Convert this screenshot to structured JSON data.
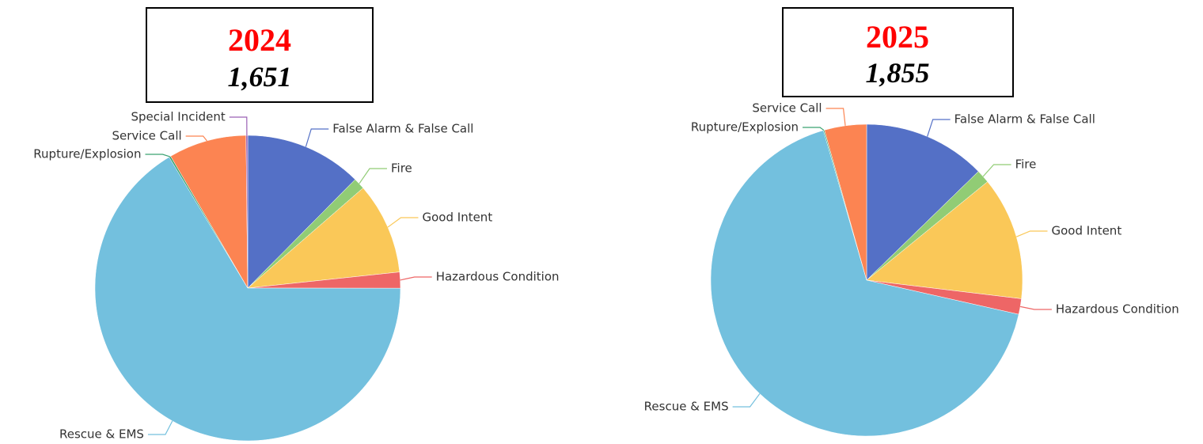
{
  "chart_data": [
    {
      "type": "pie",
      "title": "2024",
      "subtitle": "1,651",
      "categories": [
        "False Alarm & False Call",
        "Fire",
        "Good Intent",
        "Hazardous Condition",
        "Rescue & EMS",
        "Rupture/Explosion",
        "Service Call",
        "Special Incident"
      ],
      "values": [
        205,
        20,
        160,
        28,
        1096,
        3,
        136,
        3
      ],
      "colors": [
        "#5470c6",
        "#91cc75",
        "#fac858",
        "#ee6666",
        "#73c0de",
        "#3ba272",
        "#fc8452",
        "#9a60b4"
      ]
    },
    {
      "type": "pie",
      "title": "2025",
      "subtitle": "1,855",
      "categories": [
        "False Alarm & False Call",
        "Fire",
        "Good Intent",
        "Hazardous Condition",
        "Rescue & EMS",
        "Rupture/Explosion",
        "Service Call"
      ],
      "values": [
        236,
        26,
        237,
        30,
        1243,
        2,
        81
      ],
      "colors": [
        "#5470c6",
        "#91cc75",
        "#fac858",
        "#ee6666",
        "#73c0de",
        "#3ba272",
        "#fc8452"
      ]
    }
  ]
}
